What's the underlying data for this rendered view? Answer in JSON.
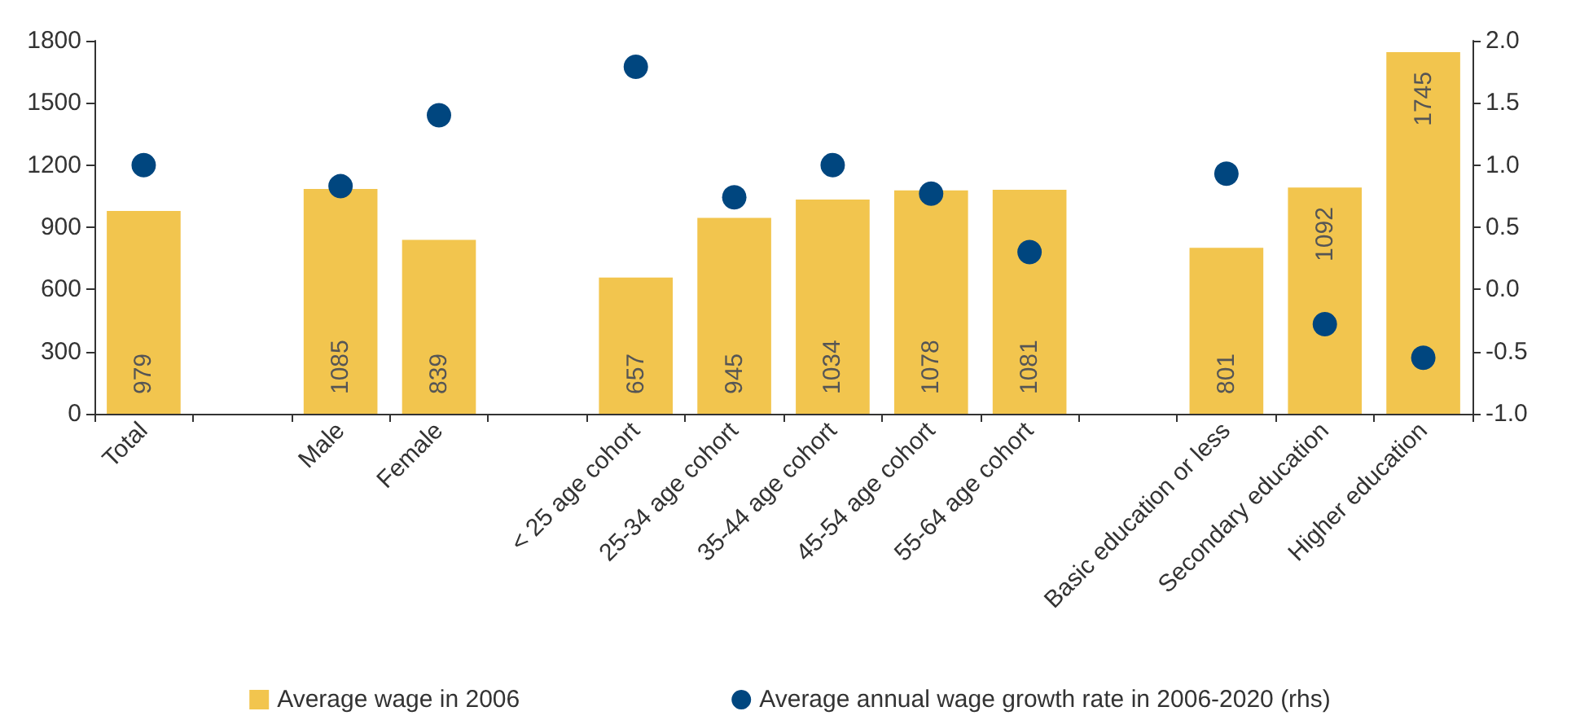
{
  "chart_data": {
    "type": "bar",
    "categories": [
      "Total",
      null,
      "Male",
      "Female",
      null,
      "< 25 age cohort",
      "25-34 age cohort",
      "35-44 age cohort",
      "45-54 age cohort",
      "55-64 age cohort",
      null,
      "Basic education or less",
      "Secondary education",
      "Higher education"
    ],
    "series": [
      {
        "name": "Average wage in 2006",
        "color": "#f2c54e",
        "values": [
          979,
          null,
          1085,
          839,
          null,
          657,
          945,
          1034,
          1078,
          1081,
          null,
          801,
          1092,
          1745
        ],
        "data_labels": true
      },
      {
        "name": "Average annual wage growth rate in 2006-2020 (rhs)",
        "type": "scatter",
        "axis": "y2",
        "color": "#00467f",
        "marker": "circle",
        "values": [
          1.0,
          null,
          0.83,
          1.4,
          null,
          1.79,
          0.74,
          1.0,
          0.77,
          0.3,
          null,
          0.93,
          -0.28,
          -0.55
        ]
      }
    ],
    "ylim": [
      0,
      1800
    ],
    "yticks": [
      0,
      300,
      600,
      900,
      1200,
      1500,
      1800
    ],
    "y2lim": [
      -1.0,
      2.0
    ],
    "y2ticks": [
      {
        "value": -1,
        "label": "-1.0"
      },
      {
        "value": -0.5,
        "label": "-0.5"
      },
      {
        "value": 0,
        "label": "0.0"
      },
      {
        "value": 0.5,
        "label": "0.5"
      },
      {
        "value": 1,
        "label": "1.0"
      },
      {
        "value": 1.5,
        "label": "1.5"
      },
      {
        "value": 2,
        "label": "2.0"
      }
    ],
    "grid": false,
    "legend": "bottom"
  }
}
